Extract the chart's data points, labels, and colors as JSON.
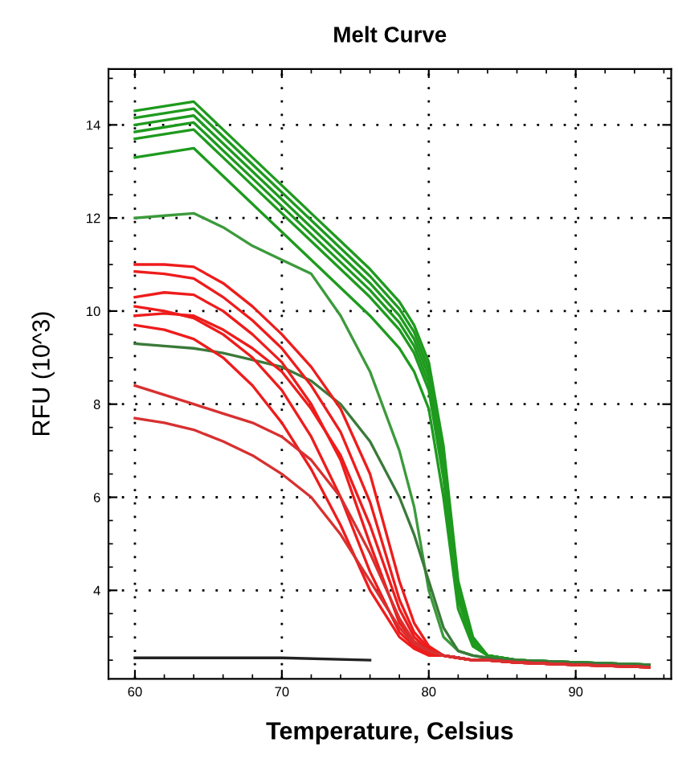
{
  "chart_data": {
    "type": "line",
    "title": "Melt Curve",
    "xlabel": "Temperature, Celsius",
    "ylabel": "RFU (10^3)",
    "x": [
      60,
      62,
      64,
      66,
      68,
      70,
      72,
      74,
      76,
      78,
      79,
      80,
      81,
      82,
      83,
      84,
      86,
      90,
      95
    ],
    "xlim": [
      58.2,
      96.5
    ],
    "ylim": [
      2.1,
      15.2
    ],
    "xticks": [
      60,
      70,
      80,
      90
    ],
    "yticks": [
      4,
      6,
      8,
      10,
      12,
      14
    ],
    "grid": true,
    "marker": "none",
    "line_style": "solid",
    "series": [
      {
        "color": "#222222",
        "x": [
          60,
          70,
          76
        ],
        "values": [
          2.55,
          2.55,
          2.5
        ]
      },
      {
        "color": "#1e9a1e",
        "values": [
          14.3,
          14.4,
          14.5,
          13.9,
          13.3,
          12.7,
          12.1,
          11.5,
          10.9,
          10.2,
          9.7,
          8.9,
          7.1,
          4.2,
          3.0,
          2.6,
          2.5,
          2.45,
          2.4
        ]
      },
      {
        "color": "#1e9a1e",
        "values": [
          14.15,
          14.25,
          14.35,
          13.75,
          13.15,
          12.55,
          11.95,
          11.35,
          10.75,
          10.05,
          9.55,
          8.75,
          6.95,
          4.1,
          2.95,
          2.6,
          2.5,
          2.45,
          2.4
        ]
      },
      {
        "color": "#1e9a1e",
        "values": [
          14.0,
          14.1,
          14.2,
          13.6,
          13.0,
          12.4,
          11.8,
          11.2,
          10.6,
          9.9,
          9.4,
          8.6,
          6.8,
          4.0,
          2.9,
          2.6,
          2.5,
          2.45,
          2.4
        ]
      },
      {
        "color": "#1e9a1e",
        "values": [
          13.85,
          13.95,
          14.05,
          13.45,
          12.85,
          12.25,
          11.65,
          11.05,
          10.45,
          9.75,
          9.25,
          8.45,
          6.6,
          3.9,
          2.9,
          2.6,
          2.5,
          2.45,
          2.4
        ]
      },
      {
        "color": "#1e9a1e",
        "values": [
          13.7,
          13.8,
          13.9,
          13.3,
          12.7,
          12.1,
          11.5,
          10.9,
          10.3,
          9.6,
          9.1,
          8.3,
          6.4,
          3.8,
          2.85,
          2.6,
          2.5,
          2.45,
          2.4
        ]
      },
      {
        "color": "#1e9a1e",
        "values": [
          13.3,
          13.4,
          13.5,
          12.9,
          12.3,
          11.7,
          11.1,
          10.5,
          9.9,
          9.2,
          8.7,
          7.9,
          6.0,
          3.6,
          2.8,
          2.6,
          2.5,
          2.45,
          2.4
        ]
      },
      {
        "color": "#3c9a3c",
        "values": [
          12.0,
          12.05,
          12.1,
          11.8,
          11.4,
          11.1,
          10.8,
          9.9,
          8.7,
          7.0,
          5.8,
          4.0,
          3.0,
          2.7,
          2.6,
          2.55,
          2.5,
          2.45,
          2.4
        ]
      },
      {
        "color": "#3a7a3a",
        "values": [
          9.3,
          9.25,
          9.2,
          9.1,
          8.95,
          8.8,
          8.5,
          8.0,
          7.2,
          6.0,
          5.2,
          4.2,
          3.2,
          2.7,
          2.6,
          2.55,
          2.5,
          2.45,
          2.4
        ]
      },
      {
        "color": "#ee1c1c",
        "values": [
          11.0,
          11.0,
          10.95,
          10.6,
          10.1,
          9.5,
          8.8,
          7.9,
          6.5,
          4.2,
          3.3,
          2.8,
          2.6,
          2.55,
          2.5,
          2.5,
          2.45,
          2.4,
          2.35
        ]
      },
      {
        "color": "#ee1c1c",
        "values": [
          10.85,
          10.8,
          10.7,
          10.3,
          9.8,
          9.2,
          8.4,
          7.4,
          5.9,
          3.8,
          3.1,
          2.75,
          2.6,
          2.55,
          2.5,
          2.5,
          2.45,
          2.4,
          2.35
        ]
      },
      {
        "color": "#ee1c1c",
        "values": [
          10.3,
          10.4,
          10.35,
          10.0,
          9.5,
          8.9,
          8.0,
          6.8,
          5.0,
          3.3,
          2.9,
          2.7,
          2.6,
          2.55,
          2.5,
          2.5,
          2.45,
          2.4,
          2.35
        ]
      },
      {
        "color": "#ee1c1c",
        "values": [
          10.1,
          10.0,
          9.85,
          9.5,
          9.0,
          8.3,
          7.3,
          6.0,
          4.4,
          3.1,
          2.8,
          2.65,
          2.6,
          2.55,
          2.5,
          2.5,
          2.45,
          2.4,
          2.35
        ]
      },
      {
        "color": "#ee1c1c",
        "values": [
          9.9,
          9.95,
          9.9,
          9.6,
          9.2,
          8.7,
          7.9,
          6.9,
          5.4,
          3.6,
          3.0,
          2.7,
          2.6,
          2.55,
          2.5,
          2.5,
          2.45,
          2.4,
          2.35
        ]
      },
      {
        "color": "#ee1c1c",
        "values": [
          9.7,
          9.6,
          9.4,
          9.0,
          8.4,
          7.6,
          6.6,
          5.4,
          4.0,
          3.0,
          2.75,
          2.6,
          2.6,
          2.55,
          2.5,
          2.5,
          2.45,
          2.4,
          2.35
        ]
      },
      {
        "color": "#d83030",
        "values": [
          8.4,
          8.2,
          8.0,
          7.8,
          7.6,
          7.3,
          6.8,
          6.0,
          4.8,
          3.4,
          2.9,
          2.7,
          2.6,
          2.55,
          2.5,
          2.5,
          2.45,
          2.4,
          2.35
        ]
      },
      {
        "color": "#d83030",
        "values": [
          7.7,
          7.6,
          7.45,
          7.2,
          6.9,
          6.5,
          6.0,
          5.2,
          4.2,
          3.2,
          2.85,
          2.7,
          2.6,
          2.55,
          2.5,
          2.5,
          2.45,
          2.4,
          2.35
        ]
      }
    ]
  }
}
